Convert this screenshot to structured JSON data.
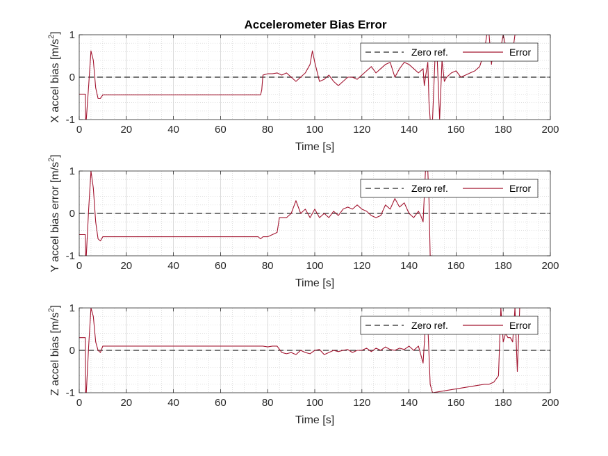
{
  "chart_data": {
    "title": "Accelerometer Bias Error",
    "type": "line",
    "colors": {
      "zero_ref": "#262626",
      "error": "#a2142f",
      "grid": "#d0d0d0",
      "axis": "#262626"
    },
    "subplots": [
      {
        "xlabel": "Time [s]",
        "ylabel_main": "X accel bias [m/s",
        "ylabel_sup": "2",
        "ylabel_tail": "]",
        "xlim": [
          0,
          200
        ],
        "ylim": [
          -1,
          1
        ],
        "xticks": [
          "0",
          "20",
          "40",
          "60",
          "80",
          "100",
          "120",
          "140",
          "160",
          "180",
          "200"
        ],
        "yticks": [
          "-1",
          "0",
          "1"
        ],
        "grid": true,
        "legend": {
          "position": "top-right",
          "entries": [
            "Zero ref.",
            "Error"
          ]
        },
        "series": [
          {
            "name": "Zero ref.",
            "style": "dashed",
            "x": [
              0,
              200
            ],
            "y": [
              0,
              0
            ]
          },
          {
            "name": "Error",
            "style": "solid",
            "x": [
              0,
              2.6,
              2.7,
              3.0,
              4.0,
              5.0,
              6.0,
              7.0,
              8.0,
              9.0,
              10.0,
              12.0,
              15.0,
              20.0,
              40.0,
              60.0,
              77.0,
              77.5,
              78.0,
              80.0,
              82.0,
              84.0,
              86.0,
              88.0,
              90.0,
              92.0,
              94.0,
              96.0,
              98.0,
              99.0,
              100.0,
              102.0,
              104.0,
              106.0,
              108.0,
              110.0,
              112.0,
              114.0,
              116.0,
              118.0,
              120.0,
              122.0,
              124.0,
              126.0,
              128.0,
              130.0,
              132.0,
              134.0,
              136.0,
              138.0,
              140.0,
              142.0,
              144.0,
              146.0,
              146.5,
              147.0,
              148.0,
              148.5,
              149.0,
              150.0,
              151.0,
              152.0,
              153.0,
              154.0,
              155.0,
              156.0,
              158.0,
              160.0,
              162.0,
              164.0,
              166.0,
              168.0,
              170.0,
              172.0,
              173.0,
              174.0,
              175.0,
              176.0,
              178.0,
              180.0,
              182.0,
              184.0,
              185.0,
              186.0
            ],
            "y": [
              -0.4,
              -0.4,
              -1,
              -1,
              -0.2,
              0.62,
              0.4,
              -0.25,
              -0.5,
              -0.5,
              -0.42,
              -0.42,
              -0.42,
              -0.42,
              -0.42,
              -0.42,
              -0.42,
              -0.3,
              0.05,
              0.08,
              0.08,
              0.1,
              0.05,
              0.1,
              0.0,
              -0.1,
              0.0,
              0.1,
              0.3,
              0.62,
              0.35,
              -0.1,
              -0.05,
              0.05,
              -0.1,
              -0.2,
              -0.1,
              0.0,
              0.0,
              -0.05,
              0.05,
              0.15,
              0.25,
              0.1,
              0.2,
              0.3,
              0.35,
              0.0,
              0.2,
              0.35,
              0.3,
              0.2,
              0.1,
              0.2,
              -0.2,
              0.0,
              0.35,
              -0.6,
              -1,
              -1,
              0.4,
              0.4,
              -1,
              0.4,
              -0.1,
              0.0,
              0.1,
              0.15,
              0.0,
              0.05,
              0.1,
              0.15,
              0.25,
              0.6,
              1,
              1,
              0.3,
              0.8,
              0.4,
              1,
              0.5,
              0.6,
              1,
              1
            ]
          }
        ]
      },
      {
        "xlabel": "Time [s]",
        "ylabel_main": "Y accel bias error [m/s",
        "ylabel_sup": "2",
        "ylabel_tail": "]",
        "xlim": [
          0,
          200
        ],
        "ylim": [
          -1,
          1
        ],
        "xticks": [
          "0",
          "20",
          "40",
          "60",
          "80",
          "100",
          "120",
          "140",
          "160",
          "180",
          "200"
        ],
        "yticks": [
          "-1",
          "0",
          "1"
        ],
        "grid": true,
        "legend": {
          "position": "top-right",
          "entries": [
            "Zero ref.",
            "Error"
          ]
        },
        "series": [
          {
            "name": "Zero ref.",
            "style": "dashed",
            "x": [
              0,
              200
            ],
            "y": [
              0,
              0
            ]
          },
          {
            "name": "Error",
            "style": "solid",
            "x": [
              0,
              2.6,
              2.7,
              3.0,
              4.0,
              5.0,
              6.0,
              7.0,
              8.0,
              9.0,
              10.0,
              12.0,
              15.0,
              20.0,
              40.0,
              60.0,
              76.0,
              77.0,
              78.0,
              80.0,
              82.0,
              84.0,
              85.0,
              86.0,
              88.0,
              90.0,
              92.0,
              94.0,
              96.0,
              98.0,
              100.0,
              102.0,
              104.0,
              106.0,
              108.0,
              110.0,
              112.0,
              114.0,
              116.0,
              118.0,
              120.0,
              122.0,
              124.0,
              126.0,
              128.0,
              130.0,
              132.0,
              134.0,
              136.0,
              138.0,
              140.0,
              142.0,
              144.0,
              145.0,
              146.0,
              147.0,
              148.0,
              148.5,
              149.0,
              150.0
            ],
            "y": [
              -0.5,
              -0.5,
              -1,
              -1,
              0.1,
              1,
              0.6,
              -0.2,
              -0.6,
              -0.65,
              -0.55,
              -0.55,
              -0.55,
              -0.55,
              -0.55,
              -0.55,
              -0.55,
              -0.6,
              -0.55,
              -0.55,
              -0.5,
              -0.45,
              -0.1,
              -0.1,
              -0.1,
              0.0,
              0.3,
              0.0,
              0.1,
              -0.1,
              0.1,
              -0.1,
              0.0,
              -0.1,
              0.05,
              -0.05,
              0.1,
              0.15,
              0.1,
              0.2,
              0.1,
              0.05,
              -0.05,
              -0.1,
              -0.05,
              0.2,
              0.1,
              0.35,
              0.15,
              0.25,
              0.0,
              -0.1,
              0.05,
              -0.05,
              -0.2,
              1,
              1,
              0.3,
              -1,
              -1
            ]
          }
        ]
      },
      {
        "xlabel": "Time [s]",
        "ylabel_main": "Z accel bias [m/s",
        "ylabel_sup": "2",
        "ylabel_tail": "]",
        "xlim": [
          0,
          200
        ],
        "ylim": [
          -1,
          1
        ],
        "xticks": [
          "0",
          "20",
          "40",
          "60",
          "80",
          "100",
          "120",
          "140",
          "160",
          "180",
          "200"
        ],
        "yticks": [
          "-1",
          "0",
          "1"
        ],
        "grid": true,
        "legend": {
          "position": "top-right",
          "entries": [
            "Zero ref.",
            "Error"
          ]
        },
        "series": [
          {
            "name": "Zero ref.",
            "style": "dashed",
            "x": [
              0,
              200
            ],
            "y": [
              0,
              0
            ]
          },
          {
            "name": "Error",
            "style": "solid",
            "x": [
              0,
              2.6,
              2.7,
              3.0,
              4.0,
              5.0,
              6.0,
              7.0,
              8.0,
              9.0,
              10.0,
              12.0,
              15.0,
              20.0,
              40.0,
              60.0,
              77.0,
              78.0,
              80.0,
              82.0,
              84.0,
              86.0,
              88.0,
              90.0,
              92.0,
              94.0,
              96.0,
              98.0,
              100.0,
              102.0,
              104.0,
              106.0,
              108.0,
              110.0,
              112.0,
              114.0,
              116.0,
              118.0,
              120.0,
              122.0,
              124.0,
              126.0,
              128.0,
              130.0,
              132.0,
              134.0,
              136.0,
              138.0,
              140.0,
              142.0,
              144.0,
              146.0,
              147.0,
              148.0,
              149.0,
              150.0,
              172.0,
              174.0,
              176.0,
              178.0,
              179.0,
              180.0,
              181.0,
              182.0,
              183.0,
              184.0,
              185.0,
              186.0,
              187.0
            ],
            "y": [
              0.3,
              0.3,
              -1,
              -1,
              0.1,
              1,
              0.8,
              0.2,
              0.0,
              -0.05,
              0.1,
              0.1,
              0.1,
              0.1,
              0.1,
              0.1,
              0.1,
              0.1,
              0.08,
              0.1,
              0.1,
              -0.05,
              -0.08,
              -0.05,
              -0.1,
              0.0,
              -0.05,
              -0.08,
              0.0,
              0.02,
              -0.1,
              -0.05,
              0.0,
              -0.03,
              0.0,
              0.02,
              -0.05,
              0.0,
              0.0,
              0.05,
              -0.03,
              0.05,
              0.0,
              0.08,
              0.02,
              0.0,
              0.05,
              0.02,
              0.1,
              0.0,
              0.1,
              -0.3,
              0.6,
              0.6,
              -0.8,
              -1,
              -0.8,
              -0.8,
              -0.75,
              -0.6,
              1,
              0.2,
              0.4,
              0.3,
              0.3,
              0.2,
              1,
              -0.5,
              1
            ]
          }
        ]
      }
    ]
  }
}
